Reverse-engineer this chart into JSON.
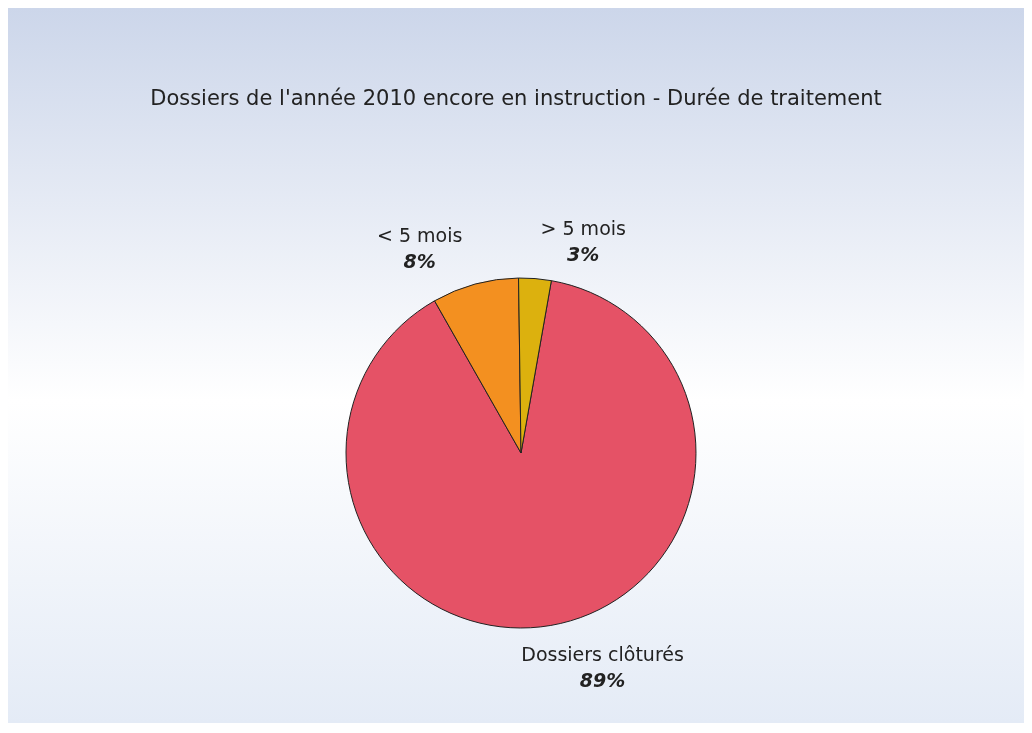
{
  "chart_data": {
    "type": "pie",
    "title": "Dossiers de l'année 2010 encore en instruction - Durée de traitement",
    "categories": [
      "Dossiers clôturés",
      "< 5 mois",
      "> 5 mois"
    ],
    "values": [
      89,
      8,
      3
    ],
    "colors": [
      "#e55266",
      "#f39020",
      "#dcb10e"
    ],
    "value_labels": [
      "89%",
      "8%",
      "3%"
    ],
    "legend": false
  }
}
